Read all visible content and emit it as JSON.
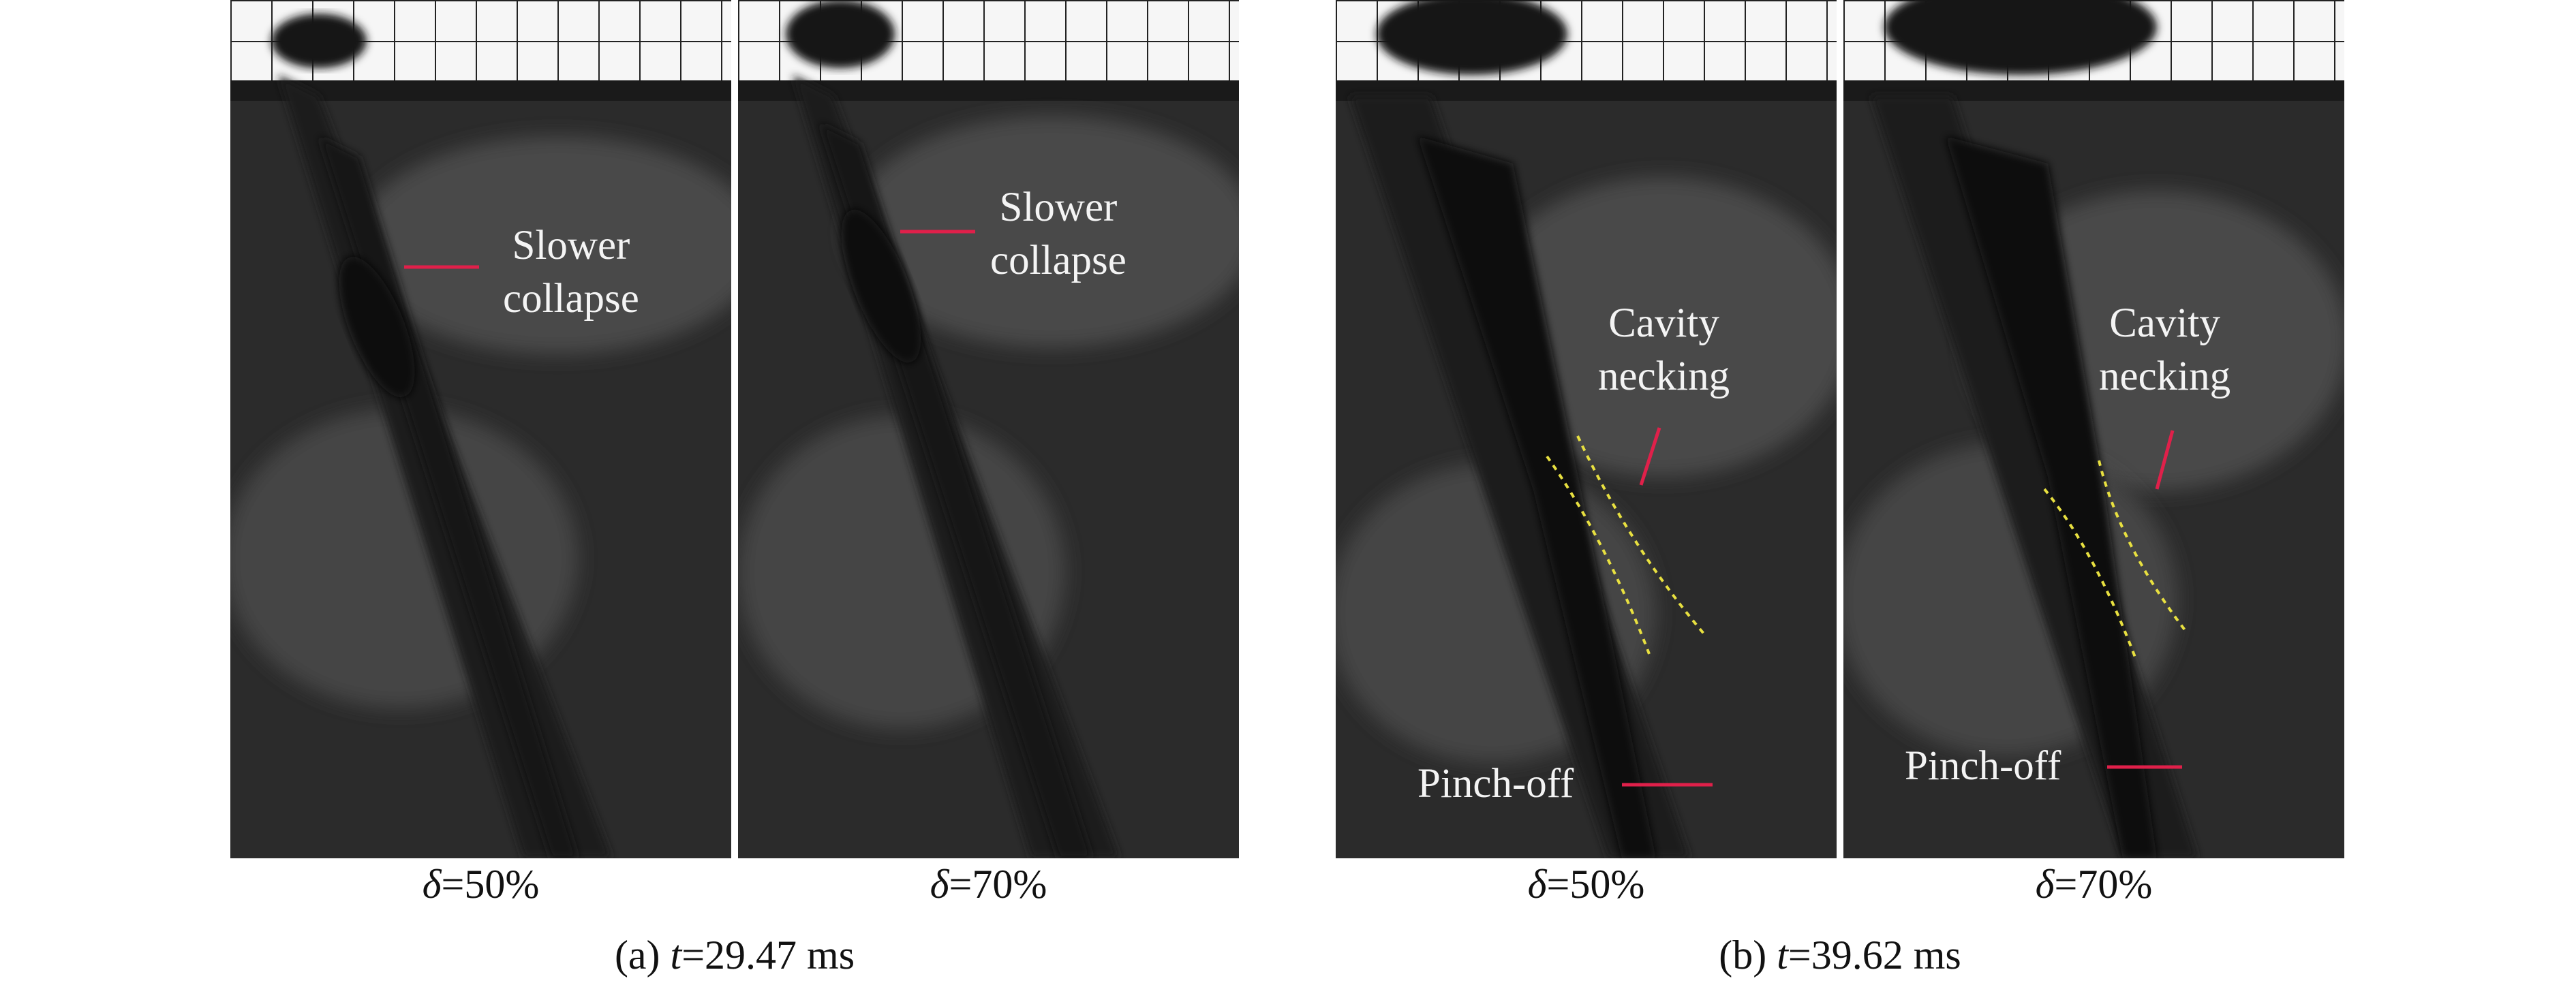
{
  "panels": [
    {
      "id": "a-50",
      "caption_prefix": "δ",
      "caption_value": "=50%",
      "annotations": [
        {
          "text_line1": "Slower",
          "text_line2": "collapse"
        }
      ]
    },
    {
      "id": "a-70",
      "caption_prefix": "δ",
      "caption_value": "=70%",
      "annotations": [
        {
          "text_line1": "Slower",
          "text_line2": "collapse"
        }
      ]
    },
    {
      "id": "b-50",
      "caption_prefix": "δ",
      "caption_value": "=50%",
      "annotations": [
        {
          "text_line1": "Cavity",
          "text_line2": "necking"
        },
        {
          "text_line1": "Pinch-off"
        }
      ]
    },
    {
      "id": "b-70",
      "caption_prefix": "δ",
      "caption_value": "=70%",
      "annotations": [
        {
          "text_line1": "Cavity",
          "text_line2": "necking"
        },
        {
          "text_line1": "Pinch-off"
        }
      ]
    }
  ],
  "groups": [
    {
      "id": "a",
      "prefix": "(a) ",
      "t": "t",
      "rest": "=29.47 ms"
    },
    {
      "id": "b",
      "prefix": "(b) ",
      "t": "t",
      "rest": "=39.62 ms"
    }
  ],
  "colors": {
    "marker": "#e0204a",
    "guide": "#e8e040",
    "water": "#3a3a3a",
    "cavity": "#161616",
    "grid": "#222222"
  }
}
